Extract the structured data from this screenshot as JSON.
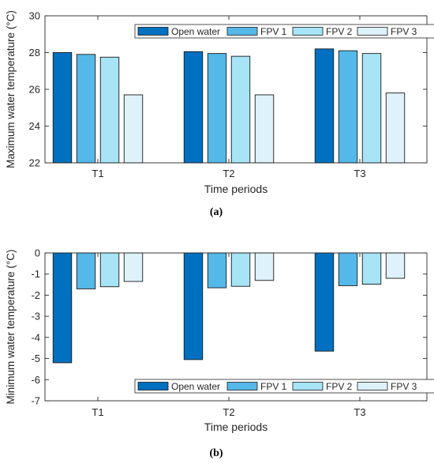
{
  "colors": {
    "open_water": "#0070C0",
    "fpv1": "#54B8E9",
    "fpv2": "#A6E4F6",
    "fpv3": "#DDF2FB",
    "bar_edge": "#1a1a1a",
    "axis": "#262626"
  },
  "chart_data": [
    {
      "type": "bar",
      "panel_label": "(a)",
      "categories": [
        "T1",
        "T2",
        "T3"
      ],
      "xlabel": "Time periods",
      "ylabel": "Maximum water temperature (°C)",
      "ylim": [
        22,
        30
      ],
      "yticks": [
        "22",
        "24",
        "26",
        "28",
        "30"
      ],
      "legend_position": "top-right",
      "series": [
        {
          "name": "Open water",
          "values": [
            28.0,
            28.05,
            28.2
          ]
        },
        {
          "name": "FPV 1",
          "values": [
            27.9,
            27.95,
            28.1
          ]
        },
        {
          "name": "FPV 2",
          "values": [
            27.75,
            27.8,
            27.95
          ]
        },
        {
          "name": "FPV 3",
          "values": [
            25.7,
            25.7,
            25.8
          ]
        }
      ]
    },
    {
      "type": "bar",
      "panel_label": "(b)",
      "categories": [
        "T1",
        "T2",
        "T3"
      ],
      "xlabel": "Time periods",
      "ylabel": "Minimum water temperature (°C)",
      "ylim": [
        -7,
        0
      ],
      "yticks": [
        "-7",
        "-6",
        "-5",
        "-4",
        "-3",
        "-2",
        "-1",
        "0"
      ],
      "legend_position": "bottom-right",
      "series": [
        {
          "name": "Open water",
          "values": [
            -5.2,
            -5.05,
            -4.65
          ]
        },
        {
          "name": "FPV 1",
          "values": [
            -1.7,
            -1.65,
            -1.55
          ]
        },
        {
          "name": "FPV 2",
          "values": [
            -1.6,
            -1.58,
            -1.48
          ]
        },
        {
          "name": "FPV 3",
          "values": [
            -1.35,
            -1.3,
            -1.2
          ]
        }
      ]
    }
  ]
}
